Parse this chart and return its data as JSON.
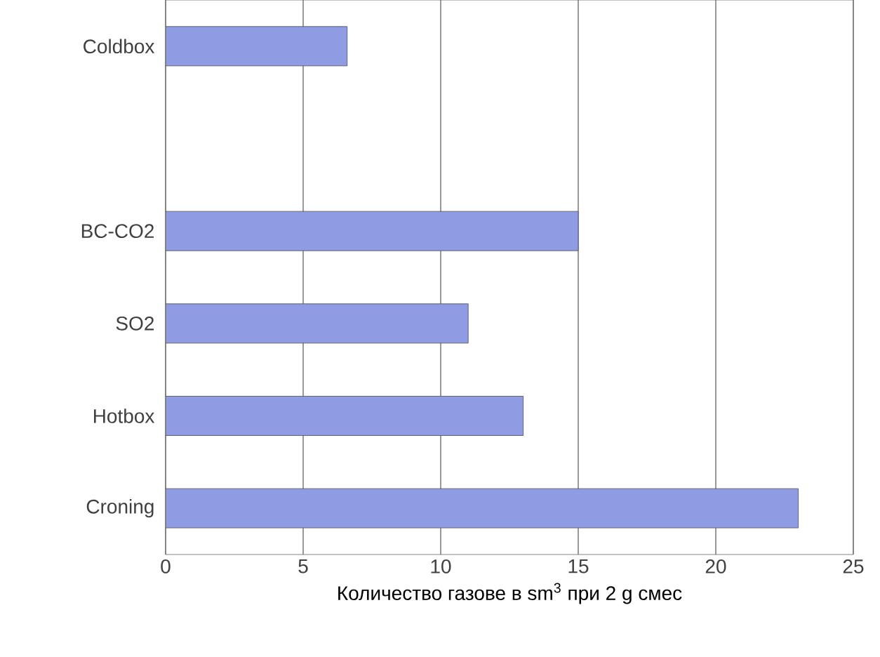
{
  "chart_data": {
    "type": "bar",
    "orientation": "horizontal",
    "categories": [
      "Coldbox",
      null,
      "BC-CO2",
      "SO2",
      "Hotbox",
      "Croning"
    ],
    "values": [
      6.6,
      null,
      15,
      11,
      13,
      23
    ],
    "color": "#8f9be3",
    "xlim": [
      0,
      25
    ],
    "xticks": [
      0,
      5,
      10,
      15,
      20,
      25
    ],
    "grid": "x",
    "xlabel": "Количество газове в sm$^{3}$ при 2 g смес"
  }
}
